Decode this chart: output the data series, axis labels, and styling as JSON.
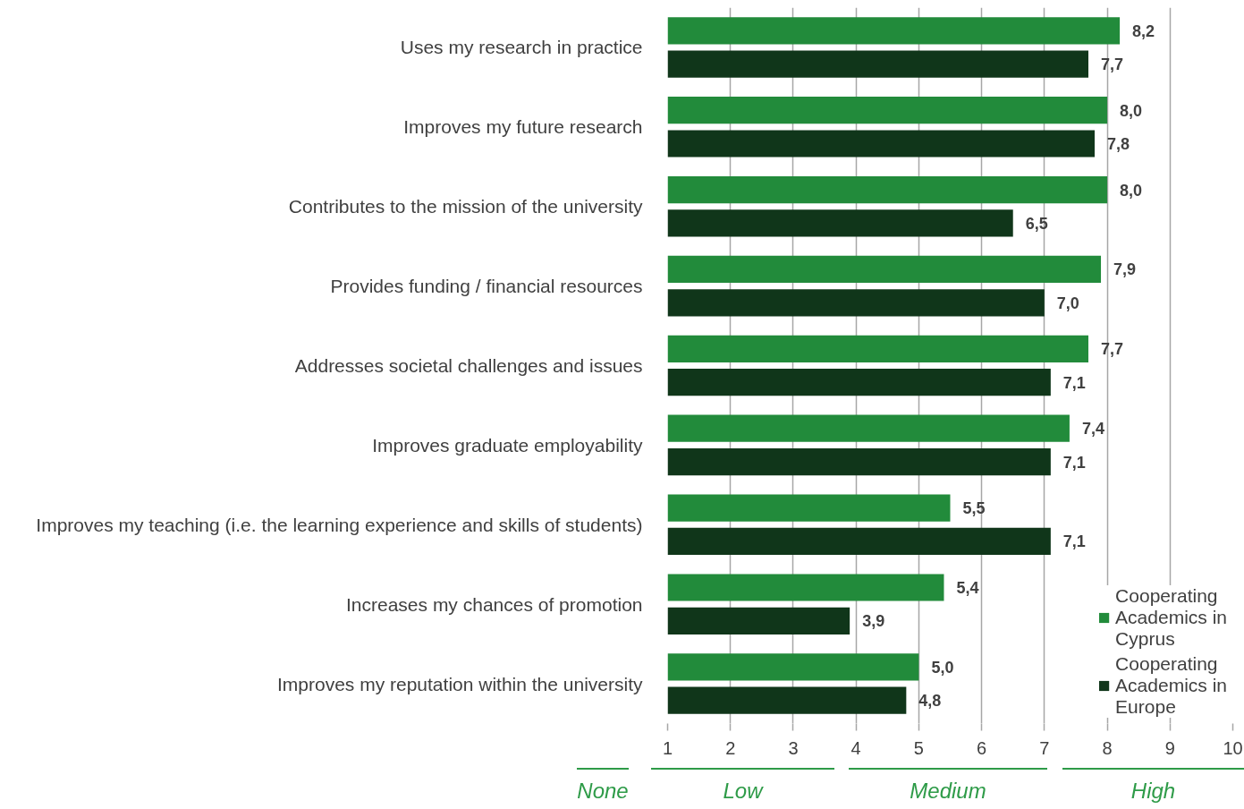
{
  "chart_data": {
    "type": "bar",
    "orientation": "horizontal",
    "categories": [
      "Uses my research in practice",
      "Improves my future research",
      "Contributes to the mission of the university",
      "Provides funding / financial resources",
      "Addresses societal challenges and issues",
      "Improves graduate employability",
      "Improves my teaching (i.e. the learning experience and skills of students)",
      "Increases my chances of promotion",
      "Improves my reputation within the university"
    ],
    "series": [
      {
        "name": "Cooperating Academics in Cyprus",
        "color": "#228b3b",
        "values": [
          8.2,
          8.0,
          8.0,
          7.9,
          7.7,
          7.4,
          5.5,
          5.4,
          5.0
        ],
        "value_labels": [
          "8,2",
          "8,0",
          "8,0",
          "7,9",
          "7,7",
          "7,4",
          "5,5",
          "5,4",
          "5,0"
        ]
      },
      {
        "name": "Cooperating Academics in Europe",
        "color": "#10361a",
        "values": [
          7.7,
          7.8,
          6.5,
          7.0,
          7.1,
          7.1,
          7.1,
          3.9,
          4.8
        ],
        "value_labels": [
          "7,7",
          "7,8",
          "6,5",
          "7,0",
          "7,1",
          "7,1",
          "7,1",
          "3,9",
          "4,8"
        ]
      }
    ],
    "xlim": [
      1,
      10
    ],
    "xticks": [
      1,
      2,
      3,
      4,
      5,
      6,
      7,
      8,
      9,
      10
    ],
    "grid": "x",
    "legend": "bottom right",
    "annotations": [
      "None",
      "Low",
      "Medium",
      "High"
    ]
  }
}
